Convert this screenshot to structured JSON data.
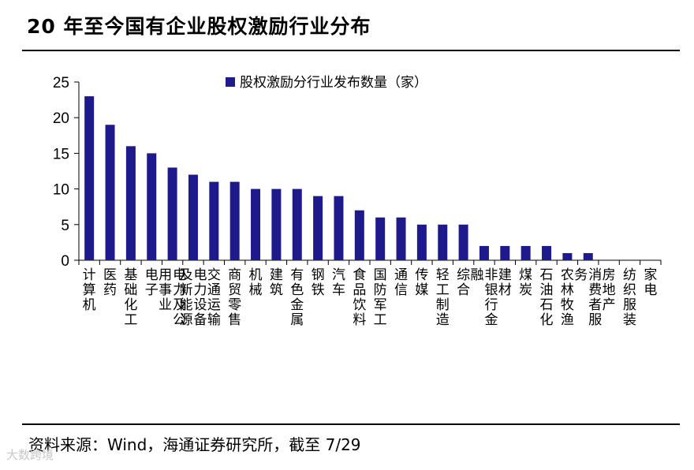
{
  "header": {
    "title": "20 年至今国有企业股权激励行业分布"
  },
  "footer": {
    "source": "资料来源：Wind，海通证券研究所，截至 7/29",
    "watermark": "大数跨境"
  },
  "colors": {
    "bar": "#1f1a8c",
    "axis": "#000000"
  },
  "chart_data": {
    "type": "bar",
    "title": "",
    "xlabel": "",
    "ylabel": "",
    "ylim": [
      0,
      25
    ],
    "yticks": [
      0,
      5,
      10,
      15,
      20,
      25
    ],
    "legend": {
      "placement": "top-center"
    },
    "grid": false,
    "categories": [
      "计算机",
      "医药",
      "基础化工",
      "电子",
      "电力及公用事业",
      "电力设备及新能源",
      "交通运输",
      "商贸零售",
      "机械",
      "建筑",
      "有色金属",
      "钢铁",
      "汽车",
      "食品饮料",
      "国防军工",
      "通信",
      "传媒",
      "轻工制造",
      "综合",
      "非银行金融",
      "建材",
      "煤炭",
      "石油石化",
      "农林牧渔",
      "消费者服务",
      "房地产",
      "纺织服装",
      "家电"
    ],
    "series": [
      {
        "name": "股权激励分行业发布数量（家）",
        "values": [
          23,
          19,
          16,
          15,
          13,
          12,
          11,
          11,
          10,
          10,
          10,
          9,
          9,
          7,
          6,
          6,
          5,
          5,
          5,
          2,
          2,
          2,
          2,
          1,
          1,
          0,
          0,
          0
        ]
      }
    ]
  }
}
